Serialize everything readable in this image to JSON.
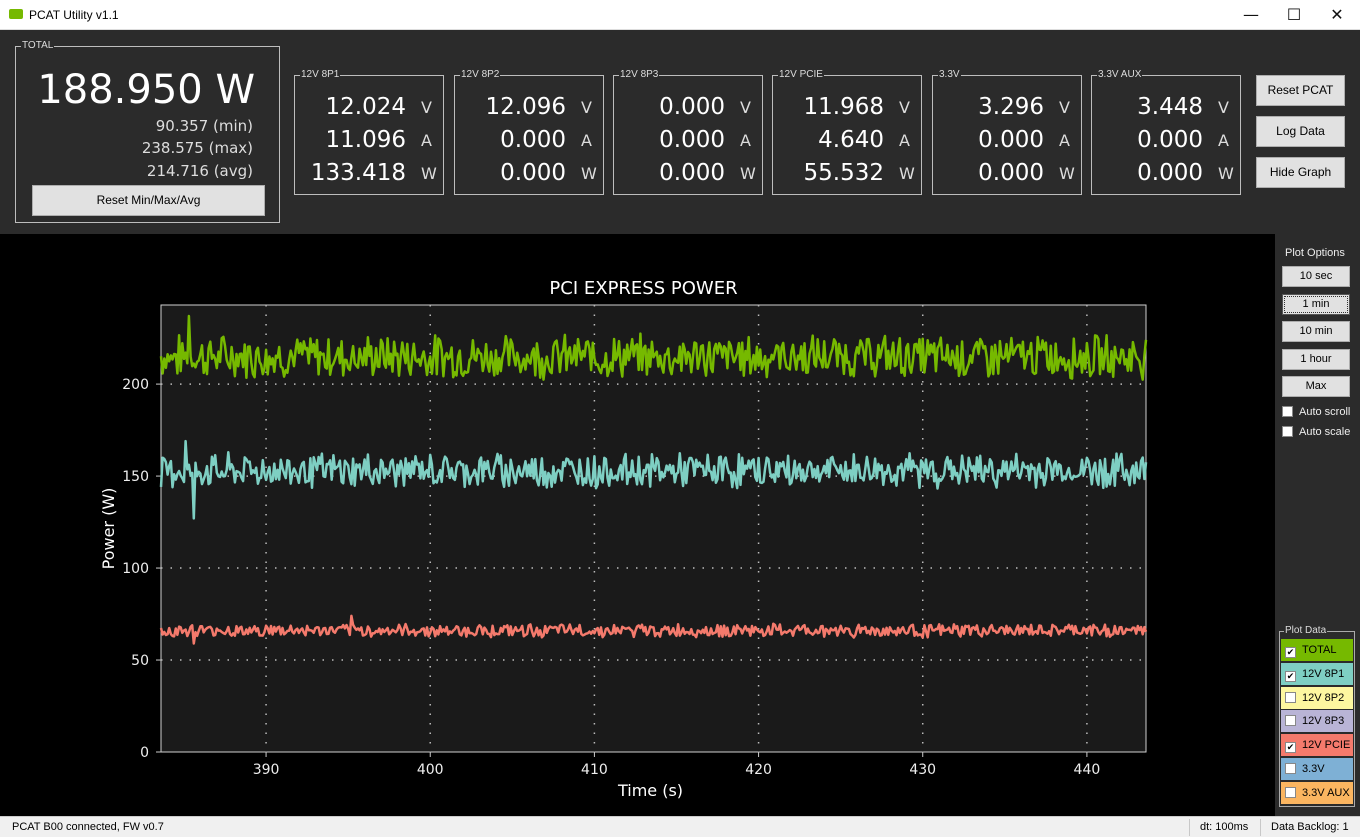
{
  "window": {
    "title": "PCAT Utility v1.1",
    "minimize": "—",
    "maximize": "☐",
    "close": "✕"
  },
  "total": {
    "label": "TOTAL",
    "power": "188.950 W",
    "min": "90.357 (min)",
    "max": "238.575 (max)",
    "avg": "214.716 (avg)",
    "reset_label": "Reset Min/Max/Avg"
  },
  "rails": [
    {
      "label": "12V 8P1",
      "v": "12.024",
      "a": "11.096",
      "w": "133.418"
    },
    {
      "label": "12V 8P2",
      "v": "12.096",
      "a": "0.000",
      "w": "0.000"
    },
    {
      "label": "12V 8P3",
      "v": "0.000",
      "a": "0.000",
      "w": "0.000"
    },
    {
      "label": "12V PCIE",
      "v": "11.968",
      "a": "4.640",
      "w": "55.532"
    },
    {
      "label": "3.3V",
      "v": "3.296",
      "a": "0.000",
      "w": "0.000"
    },
    {
      "label": "3.3V AUX",
      "v": "3.448",
      "a": "0.000",
      "w": "0.000"
    }
  ],
  "units": {
    "v": "V",
    "a": "A",
    "w": "W"
  },
  "actions": {
    "reset_pcat": "Reset PCAT",
    "log_data": "Log Data",
    "hide_graph": "Hide Graph"
  },
  "plot_options": {
    "label": "Plot Options",
    "buttons": [
      "10 sec",
      "1 min",
      "10 min",
      "1 hour",
      "Max"
    ],
    "selected": "1 min",
    "auto_scroll": "Auto scroll",
    "auto_scale": "Auto scale"
  },
  "plot_data": {
    "label": "Plot Data",
    "items": [
      {
        "label": "TOTAL",
        "checked": true,
        "color": "#76b900"
      },
      {
        "label": "12V 8P1",
        "checked": true,
        "color": "#7ecfc3"
      },
      {
        "label": "12V 8P2",
        "checked": false,
        "color": "#fdf7a0"
      },
      {
        "label": "12V 8P3",
        "checked": false,
        "color": "#b9b4d6"
      },
      {
        "label": "12V PCIE",
        "checked": true,
        "color": "#f47a6c"
      },
      {
        "label": "3.3V",
        "checked": false,
        "color": "#7eb0d5"
      },
      {
        "label": "3.3V AUX",
        "checked": false,
        "color": "#fbb560"
      }
    ]
  },
  "chart_data": {
    "type": "line",
    "title": "PCI EXPRESS POWER",
    "xlabel": "Time (s)",
    "ylabel": "Power (W)",
    "xlim": [
      383.6,
      443.6
    ],
    "ylim": [
      0,
      243
    ],
    "xticks": [
      390,
      400,
      410,
      420,
      430,
      440
    ],
    "yticks": [
      0,
      50,
      100,
      150,
      200
    ],
    "grid": true,
    "series": [
      {
        "name": "TOTAL",
        "color": "#76b900",
        "mean": 215,
        "amplitude": 10,
        "min_point": [
          385.3,
          184
        ],
        "max_point": [
          385.3,
          237
        ]
      },
      {
        "name": "12V 8P1",
        "color": "#7ecfc3",
        "mean": 153,
        "amplitude": 8,
        "min_point": [
          385.6,
          127
        ],
        "max_point": [
          385.1,
          169
        ]
      },
      {
        "name": "12V PCIE",
        "color": "#f47a6c",
        "mean": 66,
        "amplitude": 3,
        "min_point": [
          385.6,
          59
        ],
        "max_point": [
          395.2,
          74
        ]
      }
    ]
  },
  "status": {
    "connection": "PCAT B00 connected, FW v0.7",
    "dt": "dt: 100ms",
    "backlog": "Data Backlog: 1"
  }
}
